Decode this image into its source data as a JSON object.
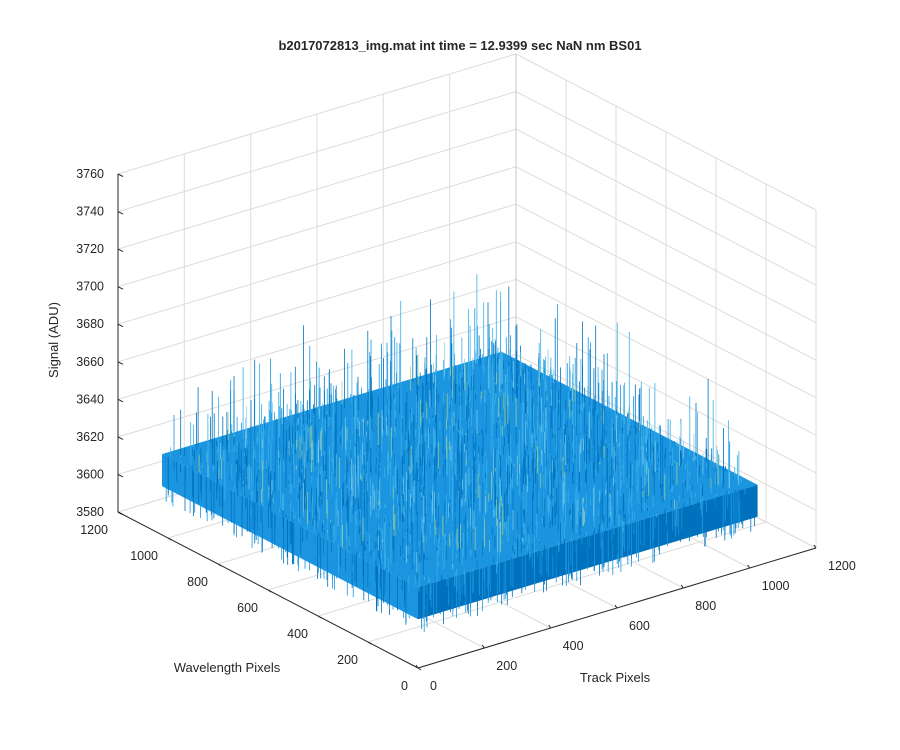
{
  "chart_data": {
    "type": "surface",
    "title": "b2017072813_img.mat int time = 12.9399 sec  NaN nm BS01",
    "xlabel": "Track Pixels",
    "ylabel": "Wavelength Pixels",
    "zlabel": "Signal (ADU)",
    "x_ticks": [
      0,
      200,
      400,
      600,
      800,
      1000,
      1200
    ],
    "y_ticks": [
      0,
      200,
      400,
      600,
      800,
      1000,
      1200
    ],
    "z_ticks": [
      3580,
      3600,
      3620,
      3640,
      3660,
      3680,
      3700,
      3720,
      3740,
      3760
    ],
    "xlim": [
      0,
      1200
    ],
    "ylim": [
      0,
      1200
    ],
    "zlim": [
      3580,
      3760
    ],
    "data_extent": {
      "x": [
        0,
        1024
      ],
      "y": [
        0,
        1024
      ]
    },
    "mean_signal": 3623,
    "noise_range": [
      3598,
      3682
    ],
    "grid": true,
    "colormap": [
      "#0072bd",
      "#1b95e0",
      "#3ab0e8",
      "#80cbe6",
      "#a8d08a"
    ]
  }
}
